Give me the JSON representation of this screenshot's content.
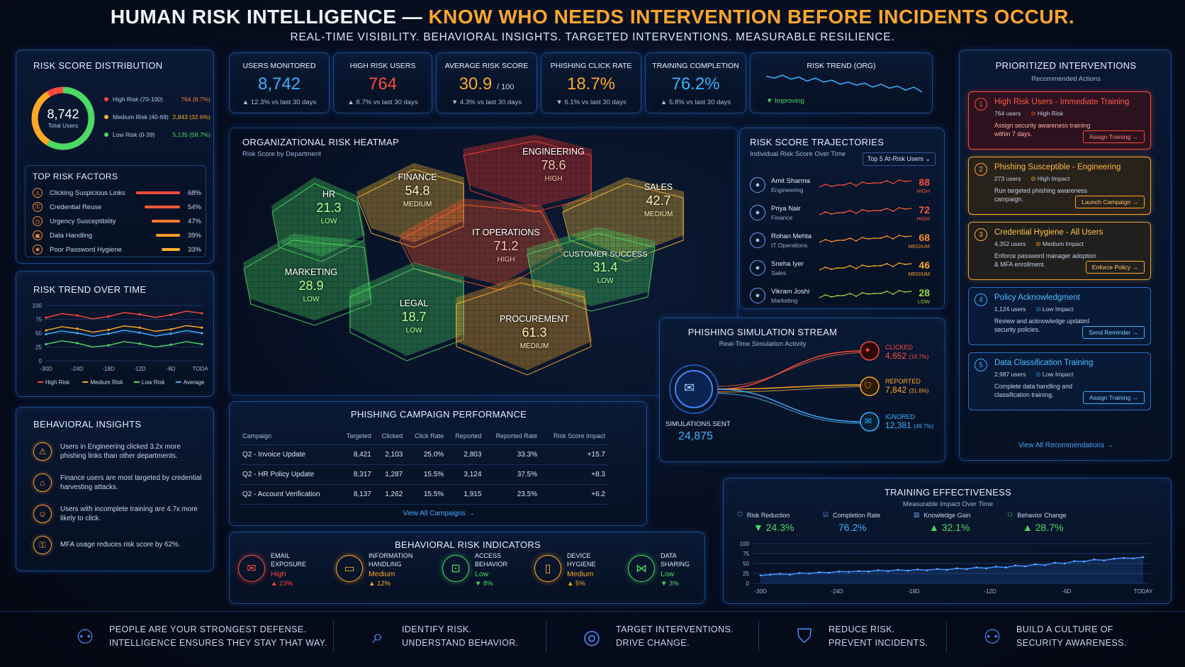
{
  "header": {
    "title_white": "HUMAN RISK INTELLIGENCE —",
    "title_orange": "KNOW WHO NEEDS INTERVENTION BEFORE INCIDENTS OCCUR.",
    "subtitle": "REAL-TIME VISIBILITY. BEHAVIORAL INSIGHTS. TARGETED INTERVENTIONS. MEASURABLE RESILIENCE."
  },
  "colors": {
    "high": "#ff4a3d",
    "medium": "#ffa726",
    "low": "#4cd964",
    "accent": "#39b3ff"
  },
  "kpis": [
    {
      "label": "USERS MONITORED",
      "value": "8,742",
      "suffix": "",
      "delta": "▲ 12.3% vs last 30 days",
      "color": "#39b3ff"
    },
    {
      "label": "HIGH RISK USERS",
      "value": "764",
      "suffix": "",
      "delta": "▲ 8.7% vs last 30 days",
      "color": "#ff4a3d"
    },
    {
      "label": "AVERAGE RISK SCORE",
      "value": "30.9",
      "suffix": "/ 100",
      "delta": "▼ 4.3% vs last 30 days",
      "color": "#ffa726"
    },
    {
      "label": "PHISHING CLICK RATE",
      "value": "18.7%",
      "suffix": "",
      "delta": "▼ 6.1% vs last 30 days",
      "color": "#ffa726"
    },
    {
      "label": "TRAINING COMPLETION",
      "value": "76.2%",
      "suffix": "",
      "delta": "▲ 5.8% vs last 30 days",
      "color": "#39b3ff"
    }
  ],
  "org_trend": {
    "label": "RISK TREND (ORG)",
    "status": "▼ Improving",
    "values": [
      52,
      50,
      53,
      49,
      51,
      47,
      50,
      46,
      48,
      44,
      46,
      43,
      45,
      41,
      44,
      40,
      42,
      38,
      41,
      36
    ]
  },
  "risk_dist": {
    "title": "RISK SCORE DISTRIBUTION",
    "total": "8,742",
    "total_label": "Total Users",
    "items": [
      {
        "label": "High Risk (70-100)",
        "value": "764 (8.7%)",
        "color": "#ff4a3d",
        "frac": 0.087
      },
      {
        "label": "Medium Risk (40-69)",
        "value": "2,843 (32.6%)",
        "color": "#ffa726",
        "frac": 0.326
      },
      {
        "label": "Low Risk (0-39)",
        "value": "5,135 (58.7%)",
        "color": "#4cd964",
        "frac": 0.587
      }
    ]
  },
  "top_factors": {
    "title": "TOP RISK FACTORS",
    "items": [
      {
        "label": "Clicking Suspicious Links",
        "pct": "68%",
        "value": 68,
        "color": "#ff4a3d"
      },
      {
        "label": "Credential Reuse",
        "pct": "54%",
        "value": 54,
        "color": "#ff5a3a"
      },
      {
        "label": "Urgency Susceptibility",
        "pct": "47%",
        "value": 47,
        "color": "#ff7a2e"
      },
      {
        "label": "Data Handling",
        "pct": "39%",
        "value": 39,
        "color": "#ff9b2e"
      },
      {
        "label": "Poor Password Hygiene",
        "pct": "33%",
        "value": 33,
        "color": "#ffb02e"
      }
    ]
  },
  "risk_trend": {
    "title": "RISK TREND OVER TIME",
    "yticks": [
      "100",
      "75",
      "50",
      "25",
      "0"
    ],
    "xticks": [
      "-30D",
      "-24D",
      "-18D",
      "-12D",
      "-6D",
      "TODAY"
    ],
    "legend": [
      "High Risk",
      "Medium Risk",
      "Low Risk",
      "Average"
    ]
  },
  "chart_data": {
    "type": "line",
    "x": [
      "-30D",
      "-24D",
      "-18D",
      "-12D",
      "-6D",
      "TODAY"
    ],
    "ylim": [
      0,
      100
    ],
    "series": [
      {
        "name": "High Risk",
        "values": [
          78,
          82,
          80,
          84,
          83,
          86
        ],
        "color": "#ff4a3d"
      },
      {
        "name": "Medium Risk",
        "values": [
          55,
          58,
          56,
          60,
          57,
          60
        ],
        "color": "#ffa726"
      },
      {
        "name": "Low Risk",
        "values": [
          30,
          32,
          28,
          31,
          29,
          30
        ],
        "color": "#4cd964"
      },
      {
        "name": "Average",
        "values": [
          48,
          50,
          49,
          51,
          49,
          50
        ],
        "color": "#39b3ff"
      }
    ]
  },
  "insights": {
    "title": "BEHAVIORAL INSIGHTS",
    "items": [
      {
        "text": "Users in Engineering clicked 3.2x more phishing links than other departments."
      },
      {
        "text": "Finance users are most targeted by credential harvesting attacks."
      },
      {
        "text": "Users with incomplete training are 4.7x more likely to click."
      },
      {
        "text": "MFA usage reduces risk score by 62%."
      }
    ]
  },
  "heatmap": {
    "title": "ORGANIZATIONAL RISK HEATMAP",
    "subtitle": "Risk Score by Department",
    "departments": [
      {
        "name": "HR",
        "score": "21.3",
        "level": "LOW",
        "color": "#4cd964"
      },
      {
        "name": "FINANCE",
        "score": "54.8",
        "level": "MEDIUM",
        "color": "#ffc23a"
      },
      {
        "name": "ENGINEERING",
        "score": "78.6",
        "level": "HIGH",
        "color": "#ff3b30"
      },
      {
        "name": "SALES",
        "score": "42.7",
        "level": "MEDIUM",
        "color": "#ffc23a"
      },
      {
        "name": "IT OPERATIONS",
        "score": "71.2",
        "level": "HIGH",
        "color": "#ff5a2e"
      },
      {
        "name": "CUSTOMER SUCCESS",
        "score": "31.4",
        "level": "LOW",
        "color": "#4cd964"
      },
      {
        "name": "MARKETING",
        "score": "28.9",
        "level": "LOW",
        "color": "#4cd964"
      },
      {
        "name": "LEGAL",
        "score": "18.7",
        "level": "LOW",
        "color": "#4cd964"
      },
      {
        "name": "PROCUREMENT",
        "score": "61.3",
        "level": "MEDIUM",
        "color": "#ffb02e"
      }
    ]
  },
  "trajectories": {
    "title": "RISK SCORE TRAJECTORIES",
    "subtitle": "Individual Risk Score Over Time",
    "filter": "Top 5 At-Risk Users",
    "users": [
      {
        "name": "Amit Sharma",
        "dept": "Engineering",
        "score": "88",
        "level": "HIGH",
        "color": "#ff4a3d"
      },
      {
        "name": "Priya Nair",
        "dept": "Finance",
        "score": "72",
        "level": "HIGH",
        "color": "#ff5a3a"
      },
      {
        "name": "Rohan Mehta",
        "dept": "IT Operations",
        "score": "68",
        "level": "MEDIUM",
        "color": "#ff8c2e"
      },
      {
        "name": "Sneha Iyer",
        "dept": "Sales",
        "score": "46",
        "level": "MEDIUM",
        "color": "#ffa726"
      },
      {
        "name": "Vikram Joshi",
        "dept": "Marketing",
        "score": "28",
        "level": "LOW",
        "color": "#9bd83a"
      }
    ]
  },
  "phishing_stream": {
    "title": "PHISHING SIMULATION STREAM",
    "subtitle": "Real-Time Simulation Activity",
    "sent_label": "SIMULATIONS SENT",
    "sent_value": "24,875",
    "outcomes": [
      {
        "label": "CLICKED",
        "value": "4,652",
        "pct": "(18.7%)",
        "color": "#ff4a3d"
      },
      {
        "label": "REPORTED",
        "value": "7,842",
        "pct": "(31.6%)",
        "color": "#ffa726"
      },
      {
        "label": "IGNORED",
        "value": "12,381",
        "pct": "(49.7%)",
        "color": "#39b3ff"
      }
    ]
  },
  "campaigns": {
    "title": "PHISHING CAMPAIGN PERFORMANCE",
    "headers": [
      "Campaign",
      "Targeted",
      "Clicked",
      "Click Rate",
      "Reported",
      "Reported Rate",
      "Risk Score Impact"
    ],
    "rows": [
      [
        "Q2 - Invoice Update",
        "8,421",
        "2,103",
        "25.0%",
        "2,803",
        "33.3%",
        "+15.7"
      ],
      [
        "Q2 - HR Policy Update",
        "8,317",
        "1,287",
        "15.5%",
        "3,124",
        "37.5%",
        "+8.3"
      ],
      [
        "Q2 - Account Verification",
        "8,137",
        "1,262",
        "15.5%",
        "1,915",
        "23.5%",
        "+6.2"
      ]
    ],
    "link": "View All Campaigns →"
  },
  "indicators": {
    "title": "BEHAVIORAL RISK INDICATORS",
    "items": [
      {
        "l1": "EMAIL",
        "l2": "EXPOSURE",
        "level": "High",
        "delta": "▲ 23%",
        "color": "#ff4a3d",
        "icon": "✉"
      },
      {
        "l1": "INFORMATION",
        "l2": "HANDLING",
        "level": "Medium",
        "delta": "▲ 12%",
        "color": "#ffa726",
        "icon": "▭"
      },
      {
        "l1": "ACCESS",
        "l2": "BEHAVIOR",
        "level": "Low",
        "delta": "▼ 8%",
        "color": "#4cd964",
        "icon": "🔒"
      },
      {
        "l1": "DEVICE",
        "l2": "HYGIENE",
        "level": "Medium",
        "delta": "▲ 5%",
        "color": "#ffa726",
        "icon": "▯"
      },
      {
        "l1": "DATA",
        "l2": "SHARING",
        "level": "Low",
        "delta": "▼ 3%",
        "color": "#4cd964",
        "icon": "⋈"
      }
    ]
  },
  "interventions": {
    "title": "PRIORITIZED INTERVENTIONS",
    "subtitle": "Recommended Actions",
    "items": [
      {
        "num": "1",
        "title": "High Risk Users - Immediate Training",
        "users": "764 users",
        "impact": "High Risk",
        "desc": "Assign security awareness training within 7 days.",
        "button": "Assign Training →",
        "color": "#ff4a3d"
      },
      {
        "num": "2",
        "title": "Phishing Susceptible - Engineering",
        "users": "273 users",
        "impact": "High Impact",
        "desc": "Run targeted phishing awareness campaign.",
        "button": "Launch Campaign →",
        "color": "#ffa726"
      },
      {
        "num": "3",
        "title": "Credential Hygiene - All Users",
        "users": "4,352 users",
        "impact": "Medium Impact",
        "desc": "Enforce password manager adoption & MFA enrollment.",
        "button": "Enforce Policy →",
        "color": "#ffb02e"
      },
      {
        "num": "4",
        "title": "Policy Acknowledgment",
        "users": "1,124 users",
        "impact": "Low Impact",
        "desc": "Review and acknowledge updated security policies.",
        "button": "Send Reminder →",
        "color": "#39b3ff"
      },
      {
        "num": "5",
        "title": "Data Classification Training",
        "users": "2,987 users",
        "impact": "Low Impact",
        "desc": "Complete data handling and classification training.",
        "button": "Assign Training →",
        "color": "#39b3ff"
      }
    ],
    "link": "View All Recommendations →"
  },
  "training": {
    "title": "TRAINING EFFECTIVENESS",
    "subtitle": "Measurable Impact Over Time",
    "metrics": [
      {
        "label": "Risk Reduction",
        "value": "▼ 24.3%",
        "color": "#4cd964"
      },
      {
        "label": "Completion Rate",
        "value": "76.2%",
        "color": "#39b3ff"
      },
      {
        "label": "Knowledge Gain",
        "value": "▲ 32.1%",
        "color": "#4cd964"
      },
      {
        "label": "Behavior Change",
        "value": "▲ 28.7%",
        "color": "#4cd964"
      }
    ],
    "yticks": [
      "100",
      "75",
      "50",
      "25",
      "0"
    ],
    "xticks": [
      "-30D",
      "-24D",
      "-18D",
      "-12D",
      "-6D",
      "TODAY"
    ],
    "values": [
      20,
      22,
      24,
      22,
      26,
      25,
      28,
      27,
      30,
      29,
      31,
      30,
      33,
      31,
      34,
      32,
      35,
      33,
      36,
      34,
      38,
      36,
      40,
      38,
      42,
      40,
      45,
      43,
      48,
      46,
      52,
      50,
      56,
      55,
      60,
      58,
      62,
      64,
      63,
      66
    ]
  },
  "footer": [
    {
      "l1": "PEOPLE ARE YOUR STRONGEST DEFENSE.",
      "l2": "INTELLIGENCE ENSURES THEY STAY THAT WAY.",
      "icon": "people-icon"
    },
    {
      "l1": "IDENTIFY RISK.",
      "l2": "UNDERSTAND BEHAVIOR.",
      "icon": "search-icon"
    },
    {
      "l1": "TARGET INTERVENTIONS.",
      "l2": "DRIVE CHANGE.",
      "icon": "target-icon"
    },
    {
      "l1": "REDUCE RISK.",
      "l2": "PREVENT INCIDENTS.",
      "icon": "shield-check-icon"
    },
    {
      "l1": "BUILD A CULTURE OF",
      "l2": "SECURITY AWARENESS.",
      "icon": "team-icon"
    }
  ]
}
